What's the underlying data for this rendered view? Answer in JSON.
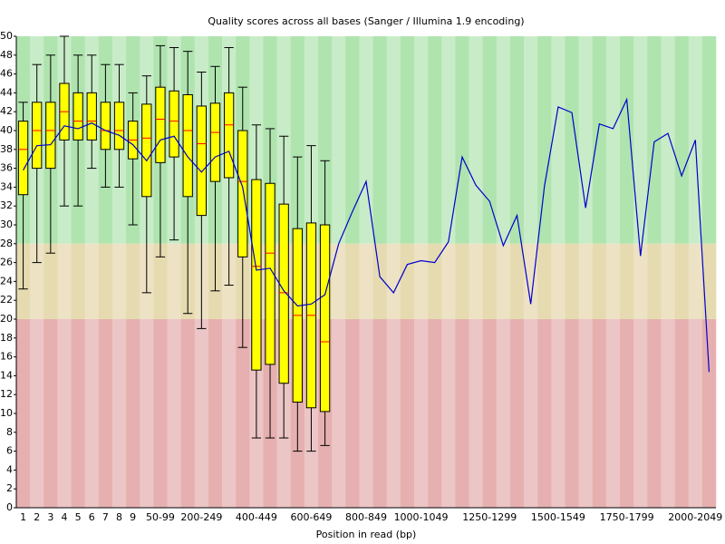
{
  "chart_data": {
    "type": "box",
    "title": "Quality scores across all bases (Sanger / Illumina 1.9 encoding)",
    "x_label": "Position in read (bp)",
    "categories": [
      "1",
      "2",
      "3",
      "4",
      "5",
      "6",
      "7",
      "8",
      "9",
      null,
      "50-99",
      null,
      null,
      "200-249",
      null,
      null,
      null,
      "400-449",
      null,
      null,
      null,
      "600-649",
      null,
      null,
      null,
      "800-849",
      null,
      null,
      null,
      "1000-1049",
      null,
      null,
      null,
      null,
      "1250-1299",
      null,
      null,
      null,
      null,
      "1500-1549",
      null,
      null,
      null,
      null,
      "1750-1799",
      null,
      null,
      null,
      null,
      "2000-2049",
      null
    ],
    "whisker_low": [
      23.2,
      26,
      27,
      32,
      32,
      36,
      34,
      34,
      30,
      22.8,
      26.6,
      28.4,
      20.6,
      19,
      23,
      23.6,
      17,
      7.4,
      7.4,
      7.4,
      6,
      6,
      6.6,
      null,
      null,
      null,
      null,
      null,
      null,
      null,
      null,
      null,
      null,
      null,
      null,
      null,
      null,
      null,
      null,
      null,
      null,
      null,
      null,
      null,
      null,
      null,
      null,
      null,
      null,
      null,
      null
    ],
    "q1": [
      33.2,
      36,
      36,
      39,
      39,
      39,
      38,
      38,
      37,
      33,
      36.6,
      37.2,
      33,
      31,
      34.6,
      35,
      26.6,
      14.6,
      15.2,
      13.2,
      11.2,
      10.6,
      10.2,
      null,
      null,
      null,
      null,
      null,
      null,
      null,
      null,
      null,
      null,
      null,
      null,
      null,
      null,
      null,
      null,
      null,
      null,
      null,
      null,
      null,
      null,
      null,
      null,
      null,
      null,
      null,
      null
    ],
    "median": [
      38,
      40,
      40,
      42,
      41,
      41,
      40,
      40,
      39,
      39.2,
      41.2,
      41,
      40,
      38.6,
      39.8,
      40.6,
      34.6,
      25.6,
      27,
      22.8,
      20.4,
      20.4,
      17.6,
      null,
      null,
      null,
      null,
      null,
      null,
      null,
      null,
      null,
      null,
      null,
      null,
      null,
      null,
      null,
      null,
      null,
      null,
      null,
      null,
      null,
      null,
      null,
      null,
      null,
      null,
      null,
      null
    ],
    "q3": [
      41,
      43,
      43,
      45,
      44,
      44,
      43,
      43,
      41,
      42.8,
      44.6,
      44.2,
      43.8,
      42.6,
      42.9,
      44,
      40,
      34.8,
      34.4,
      32.2,
      29.6,
      30.2,
      30,
      null,
      null,
      null,
      null,
      null,
      null,
      null,
      null,
      null,
      null,
      null,
      null,
      null,
      null,
      null,
      null,
      null,
      null,
      null,
      null,
      null,
      null,
      null,
      null,
      null,
      null,
      null,
      null
    ],
    "whisker_high": [
      43,
      47,
      48,
      50,
      48,
      48,
      47,
      47,
      44,
      45.8,
      49,
      48.8,
      48.4,
      46.2,
      46.8,
      48.8,
      44.6,
      40.6,
      40.2,
      39.4,
      37.2,
      38.4,
      36.8,
      null,
      null,
      null,
      null,
      null,
      null,
      null,
      null,
      null,
      null,
      null,
      null,
      null,
      null,
      null,
      null,
      null,
      null,
      null,
      null,
      null,
      null,
      null,
      null,
      null,
      null,
      null,
      null
    ],
    "mean": [
      35.8,
      38.4,
      38.5,
      40.5,
      40.2,
      40.8,
      40,
      39.5,
      38.5,
      36.8,
      39,
      39.4,
      37.2,
      35.6,
      37.2,
      37.8,
      34,
      25.2,
      25.4,
      23,
      21.4,
      21.6,
      22.6,
      28,
      31.4,
      34.6,
      24.5,
      22.8,
      25.8,
      26.2,
      26,
      28.2,
      37.2,
      34.2,
      32.5,
      27.8,
      31,
      21.6,
      34.1,
      42.5,
      41.9,
      31.8,
      40.7,
      40.2,
      43.3,
      26.7,
      38.8,
      39.7,
      35.2,
      39,
      14.4
    ],
    "box_color": "#ffff00",
    "median_color": "#ff0000",
    "mean_color": "#0000cc",
    "zones": [
      {
        "from": 28,
        "to": 50,
        "color": "#afe4af",
        "alt_color": "#c8ecc8"
      },
      {
        "from": 20,
        "to": 28,
        "color": "#e6dbb0",
        "alt_color": "#ede2c4"
      },
      {
        "from": 0,
        "to": 20,
        "color": "#e6b0b0",
        "alt_color": "#ecc6c6"
      }
    ],
    "ylim": [
      0,
      50
    ],
    "yticks": [
      0,
      2,
      4,
      6,
      8,
      10,
      12,
      14,
      16,
      18,
      20,
      22,
      24,
      26,
      28,
      30,
      32,
      34,
      36,
      38,
      40,
      42,
      44,
      46,
      48,
      50
    ]
  }
}
